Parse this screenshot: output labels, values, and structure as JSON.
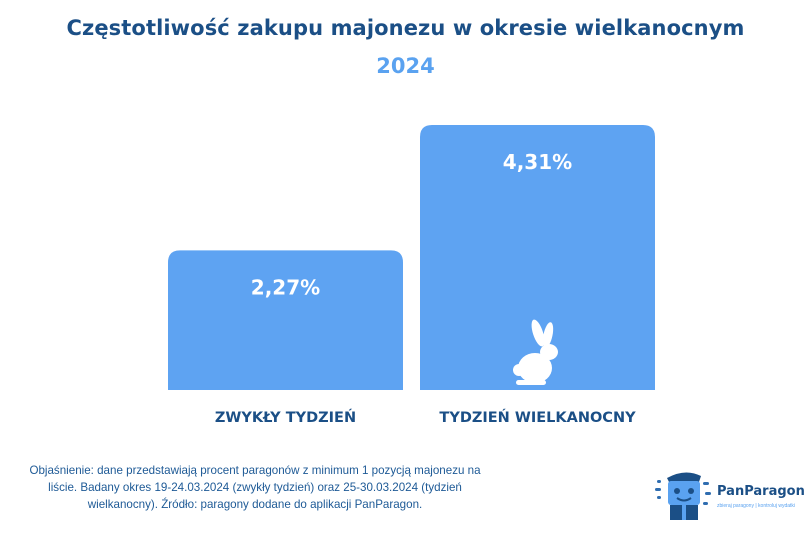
{
  "chart_data": {
    "type": "bar",
    "title": "Częstotliwość zakupu majonezu w okresie wielkanocnym",
    "subtitle": "2024",
    "categories": [
      "ZWYKŁY TYDZIEŃ",
      "TYDZIEŃ WIELKANOCNY"
    ],
    "values": [
      2.27,
      4.31
    ],
    "value_labels": [
      "2,27%",
      "4,31%"
    ],
    "unit": "%",
    "grid": false,
    "legend": "none",
    "bar_color": "#5ea3f2"
  },
  "footnote": "Objaśnienie: dane przedstawiają procent paragonów z minimum 1 pozycją majonezu na liście. Badany okres 19-24.03.2024 (zwykły tydzień) oraz 25-30.03.2024 (tydzień wielkanocny). Źródło: paragony dodane do aplikacji PanParagon.",
  "brand": {
    "name": "PanParagon",
    "tagline": "zbieraj paragony | kontroluj wydatki"
  },
  "icons": [
    "rabbit-icon",
    "panparagon-logo-icon"
  ],
  "colors": {
    "title": "#1b4f86",
    "accent": "#5aa2f0",
    "bar": "#5ea3f2"
  }
}
